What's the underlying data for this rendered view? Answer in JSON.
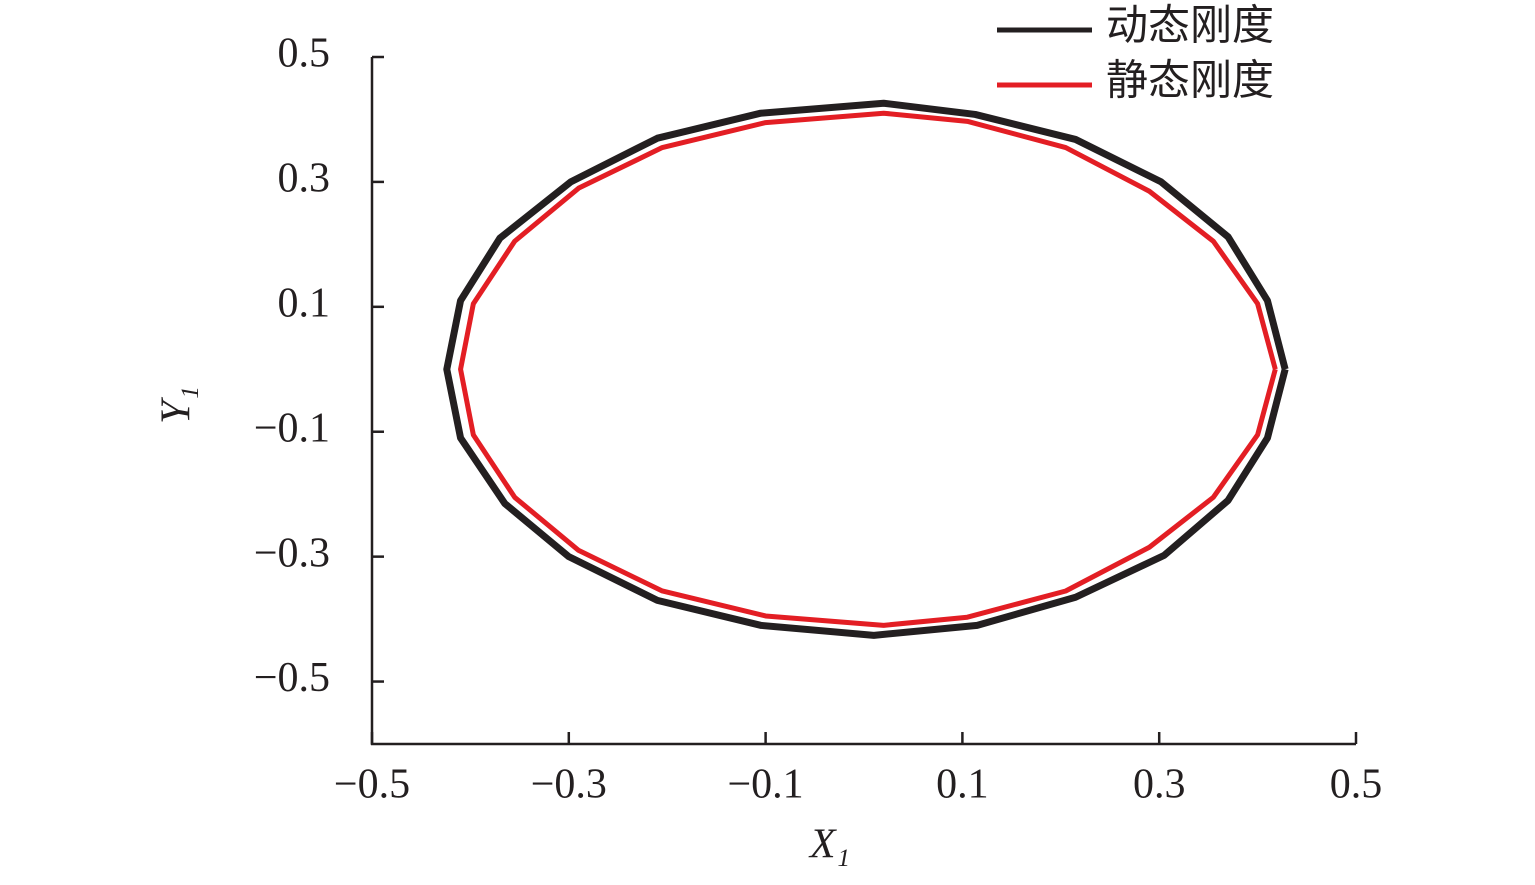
{
  "chart_data": {
    "type": "line",
    "x_label": "X₁",
    "y_label": "Y₁",
    "xlim": [
      -0.5,
      0.5
    ],
    "ylim": [
      -0.6,
      0.5
    ],
    "xticks": [
      {
        "value": -0.5,
        "label": "−0.5"
      },
      {
        "value": -0.3,
        "label": "−0.3"
      },
      {
        "value": -0.1,
        "label": "−0.1"
      },
      0.1,
      0.3,
      0.5
    ],
    "yticks": [
      {
        "value": -0.5,
        "label": "−0.5"
      },
      {
        "value": -0.3,
        "label": "−0.3"
      },
      {
        "value": -0.1,
        "label": "−0.1"
      },
      0.1,
      0.3,
      0.5
    ],
    "grid": false,
    "legend": "upper-right",
    "series": [
      {
        "name": "动态刚度",
        "color": "#231f20",
        "x": [
          0.428,
          0.41,
          0.37,
          0.302,
          0.215,
          0.113,
          0.02,
          -0.105,
          -0.21,
          -0.298,
          -0.37,
          -0.41,
          -0.424,
          -0.41,
          -0.365,
          -0.3,
          -0.21,
          -0.105,
          0.01,
          0.115,
          0.215,
          0.305,
          0.37,
          0.41,
          0.428
        ],
        "values": [
          0.0,
          0.11,
          0.212,
          0.3,
          0.368,
          0.408,
          0.426,
          0.41,
          0.37,
          0.3,
          0.21,
          0.11,
          0.0,
          -0.11,
          -0.215,
          -0.3,
          -0.37,
          -0.41,
          -0.426,
          -0.41,
          -0.365,
          -0.298,
          -0.21,
          -0.11,
          0.0
        ]
      },
      {
        "name": "静态刚度",
        "color": "#e31e24",
        "x": [
          0.418,
          0.4,
          0.355,
          0.29,
          0.205,
          0.105,
          0.02,
          -0.1,
          -0.205,
          -0.29,
          -0.355,
          -0.397,
          -0.41,
          -0.397,
          -0.355,
          -0.29,
          -0.205,
          -0.1,
          0.02,
          0.105,
          0.205,
          0.29,
          0.355,
          0.4,
          0.418
        ],
        "values": [
          0.0,
          0.105,
          0.205,
          0.285,
          0.355,
          0.397,
          0.41,
          0.395,
          0.355,
          0.29,
          0.205,
          0.105,
          0.0,
          -0.105,
          -0.205,
          -0.29,
          -0.355,
          -0.395,
          -0.41,
          -0.397,
          -0.355,
          -0.285,
          -0.205,
          -0.105,
          0.0
        ]
      }
    ]
  }
}
